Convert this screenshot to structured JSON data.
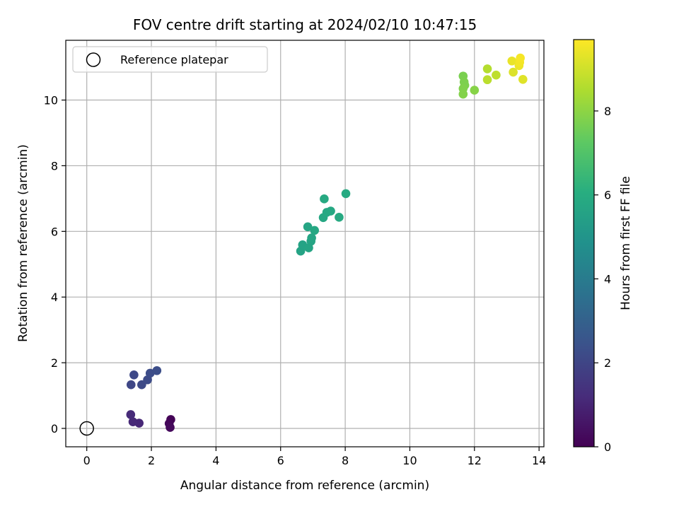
{
  "chart_data": {
    "type": "scatter",
    "title": "FOV centre drift starting at 2024/02/10 10:47:15",
    "xlabel": "Angular distance from reference (arcmin)",
    "ylabel": "Rotation from reference (arcmin)",
    "xlim": [
      -0.65,
      14.15
    ],
    "ylim": [
      -0.56,
      11.82
    ],
    "xticks": [
      0,
      2,
      4,
      6,
      8,
      10,
      12,
      14
    ],
    "yticks": [
      0,
      2,
      4,
      6,
      8,
      10
    ],
    "grid": true,
    "legend": {
      "placement": "top-left",
      "entries": [
        "Reference platepar"
      ]
    },
    "reference_point": {
      "x": 0,
      "y": 0
    },
    "colorbar": {
      "label": "Hours from first FF file",
      "range": [
        0,
        9.7
      ],
      "ticks": [
        0,
        2,
        4,
        6,
        8
      ],
      "colormap": "viridis"
    },
    "points": [
      {
        "x": 2.6,
        "y": 0.27,
        "hours": 0.05
      },
      {
        "x": 2.55,
        "y": 0.15,
        "hours": 0.15
      },
      {
        "x": 2.58,
        "y": 0.03,
        "hours": 0.25
      },
      {
        "x": 1.62,
        "y": 0.16,
        "hours": 1.05
      },
      {
        "x": 1.43,
        "y": 0.2,
        "hours": 1.1
      },
      {
        "x": 1.36,
        "y": 0.42,
        "hours": 1.15
      },
      {
        "x": 1.37,
        "y": 1.33,
        "hours": 2.05
      },
      {
        "x": 1.46,
        "y": 1.63,
        "hours": 2.1
      },
      {
        "x": 1.7,
        "y": 1.33,
        "hours": 2.15
      },
      {
        "x": 1.88,
        "y": 1.48,
        "hours": 2.2
      },
      {
        "x": 1.96,
        "y": 1.68,
        "hours": 2.25
      },
      {
        "x": 2.17,
        "y": 1.76,
        "hours": 2.3
      },
      {
        "x": 6.62,
        "y": 5.4,
        "hours": 5.6
      },
      {
        "x": 6.68,
        "y": 5.59,
        "hours": 5.6
      },
      {
        "x": 6.87,
        "y": 5.5,
        "hours": 5.65
      },
      {
        "x": 6.94,
        "y": 5.7,
        "hours": 5.65
      },
      {
        "x": 6.96,
        "y": 5.8,
        "hours": 5.7
      },
      {
        "x": 6.84,
        "y": 6.14,
        "hours": 5.7
      },
      {
        "x": 7.05,
        "y": 6.03,
        "hours": 5.75
      },
      {
        "x": 7.32,
        "y": 6.42,
        "hours": 5.75
      },
      {
        "x": 7.43,
        "y": 6.58,
        "hours": 5.8
      },
      {
        "x": 7.55,
        "y": 6.62,
        "hours": 5.8
      },
      {
        "x": 7.35,
        "y": 6.99,
        "hours": 5.85
      },
      {
        "x": 7.81,
        "y": 6.43,
        "hours": 5.85
      },
      {
        "x": 8.02,
        "y": 7.15,
        "hours": 5.9
      },
      {
        "x": 11.65,
        "y": 10.73,
        "hours": 7.7
      },
      {
        "x": 11.68,
        "y": 10.55,
        "hours": 7.75
      },
      {
        "x": 11.7,
        "y": 10.45,
        "hours": 7.75
      },
      {
        "x": 11.65,
        "y": 10.35,
        "hours": 7.8
      },
      {
        "x": 11.65,
        "y": 10.18,
        "hours": 7.85
      },
      {
        "x": 12.0,
        "y": 10.3,
        "hours": 7.9
      },
      {
        "x": 12.4,
        "y": 10.95,
        "hours": 8.6
      },
      {
        "x": 12.4,
        "y": 10.62,
        "hours": 8.7
      },
      {
        "x": 12.67,
        "y": 10.76,
        "hours": 8.75
      },
      {
        "x": 13.2,
        "y": 10.85,
        "hours": 9.2
      },
      {
        "x": 13.16,
        "y": 11.19,
        "hours": 9.4
      },
      {
        "x": 13.38,
        "y": 11.05,
        "hours": 9.45
      },
      {
        "x": 13.4,
        "y": 11.15,
        "hours": 9.55
      },
      {
        "x": 13.42,
        "y": 11.28,
        "hours": 9.6
      },
      {
        "x": 13.5,
        "y": 10.63,
        "hours": 9.25
      }
    ]
  }
}
